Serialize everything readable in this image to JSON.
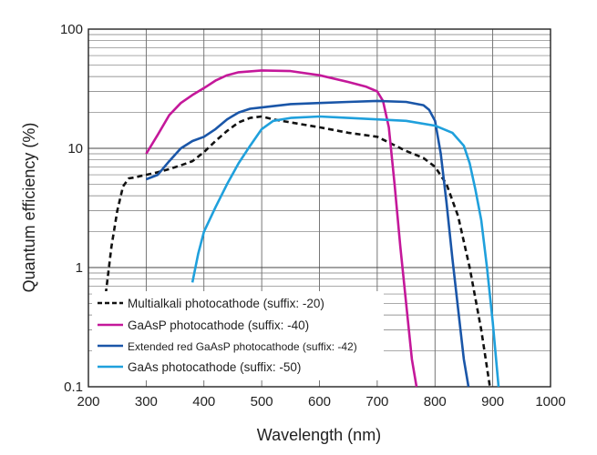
{
  "chart_data": {
    "type": "line",
    "title": "",
    "xlabel": "Wavelength (nm)",
    "ylabel": "Quantum efficiency (%)",
    "xlim": [
      200,
      1000
    ],
    "ylim": [
      0.1,
      100
    ],
    "yscale": "log",
    "grid": true,
    "legend_position": "bottom-left",
    "x_ticks": [
      "200",
      "300",
      "400",
      "500",
      "600",
      "700",
      "800",
      "900",
      "1000"
    ],
    "y_ticks": [
      "0.1",
      "1",
      "10",
      "100"
    ],
    "series": [
      {
        "name": "Multialkali photocathode (suffix: -20)",
        "color": "#111111",
        "dash": true,
        "x": [
          230,
          240,
          250,
          260,
          270,
          280,
          300,
          320,
          340,
          360,
          380,
          400,
          420,
          440,
          460,
          480,
          500,
          520,
          550,
          600,
          650,
          700,
          750,
          780,
          800,
          820,
          840,
          860,
          880,
          895
        ],
        "y": [
          0.6,
          1.5,
          3.0,
          4.8,
          5.6,
          5.7,
          6.0,
          6.3,
          6.7,
          7.2,
          7.8,
          9.3,
          11.5,
          14.0,
          16.5,
          18.0,
          18.5,
          17.5,
          16.5,
          15.0,
          13.5,
          12.5,
          9.5,
          8.3,
          7.0,
          5.0,
          2.7,
          1.0,
          0.3,
          0.1
        ]
      },
      {
        "name": "GaAsP photocathode (suffix: -40)",
        "color": "#c4189a",
        "dash": false,
        "x": [
          300,
          320,
          340,
          360,
          380,
          400,
          420,
          440,
          460,
          500,
          550,
          600,
          650,
          680,
          700,
          710,
          720,
          730,
          740,
          750,
          760,
          768
        ],
        "y": [
          9.0,
          13.0,
          19.0,
          24.0,
          28.0,
          32.0,
          37.0,
          41.0,
          43.5,
          45.0,
          44.5,
          41.0,
          36.0,
          33.0,
          30.0,
          25.0,
          15.0,
          5.0,
          1.5,
          0.5,
          0.17,
          0.1
        ]
      },
      {
        "name": "Extended red GaAsP photocathode (suffix: -42)",
        "color": "#1a56a8",
        "dash": false,
        "x": [
          300,
          320,
          340,
          360,
          380,
          400,
          420,
          440,
          460,
          480,
          500,
          550,
          600,
          650,
          700,
          750,
          780,
          790,
          800,
          810,
          820,
          830,
          840,
          850,
          858
        ],
        "y": [
          5.5,
          6.0,
          7.8,
          10.0,
          11.5,
          12.5,
          14.5,
          17.5,
          20.0,
          21.5,
          22.0,
          23.5,
          24.0,
          24.5,
          25.0,
          24.5,
          23.0,
          21.0,
          17.0,
          9.0,
          3.5,
          1.2,
          0.45,
          0.17,
          0.1
        ]
      },
      {
        "name": "GaAs photocathode (suffix: -50)",
        "color": "#1fa0dc",
        "dash": false,
        "x": [
          380,
          390,
          400,
          420,
          440,
          460,
          480,
          500,
          520,
          550,
          600,
          650,
          700,
          750,
          800,
          830,
          850,
          860,
          870,
          880,
          890,
          900,
          910
        ],
        "y": [
          0.75,
          1.3,
          2.0,
          3.2,
          5.0,
          7.5,
          10.5,
          14.5,
          17.0,
          18.0,
          18.5,
          18.0,
          17.5,
          17.0,
          15.5,
          13.5,
          10.5,
          7.5,
          4.5,
          2.5,
          1.0,
          0.35,
          0.1
        ]
      }
    ]
  }
}
